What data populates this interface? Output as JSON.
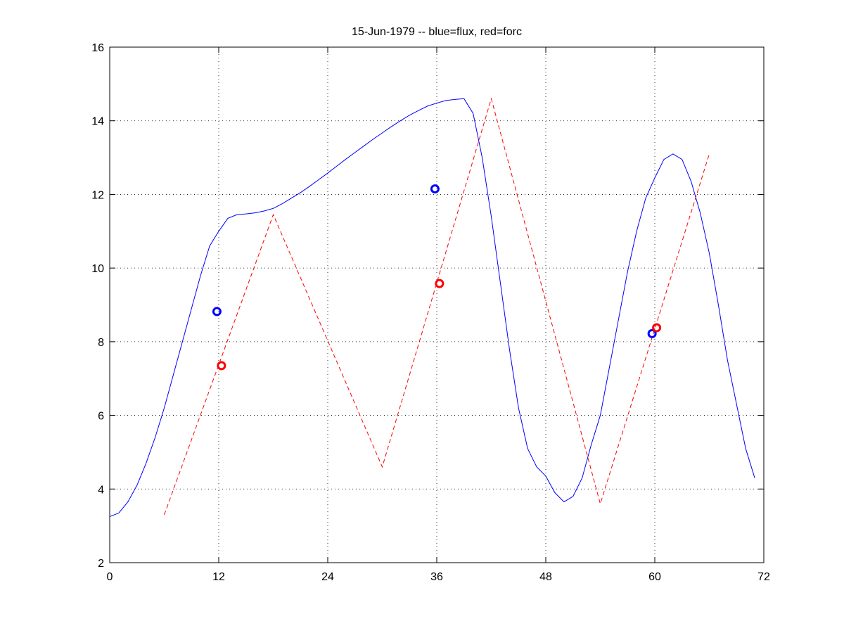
{
  "chart_data": {
    "type": "line",
    "title": "15-Jun-1979 -- blue=flux, red=forc",
    "xlim": [
      0,
      72
    ],
    "xticks": [
      0,
      12,
      24,
      36,
      48,
      60,
      72
    ],
    "ylim": [
      2,
      16
    ],
    "yticks": [
      2,
      4,
      6,
      8,
      10,
      12,
      14,
      16
    ],
    "grid": true,
    "series": [
      {
        "color": "#0000ff",
        "style": "solid",
        "x": [
          0,
          1,
          2,
          3,
          4,
          5,
          6,
          7,
          8,
          9,
          10,
          11,
          12,
          13,
          14,
          15,
          16,
          17,
          18,
          19,
          20,
          21,
          22,
          23,
          24,
          25,
          26,
          27,
          28,
          29,
          30,
          31,
          32,
          33,
          34,
          35,
          36,
          37,
          38,
          39,
          40,
          41,
          42,
          43,
          44,
          45,
          46,
          47,
          48,
          49,
          50,
          51,
          52,
          53,
          54,
          55,
          56,
          57,
          58,
          59,
          60,
          61,
          62,
          63,
          64,
          65,
          66,
          67,
          68,
          69,
          70,
          71
        ],
        "values": [
          3.25,
          3.35,
          3.65,
          4.1,
          4.7,
          5.4,
          6.2,
          7.1,
          8.0,
          8.9,
          9.8,
          10.6,
          11.0,
          11.35,
          11.45,
          11.47,
          11.5,
          11.55,
          11.62,
          11.75,
          11.9,
          12.05,
          12.22,
          12.4,
          12.58,
          12.77,
          12.96,
          13.14,
          13.32,
          13.5,
          13.67,
          13.84,
          14.0,
          14.15,
          14.28,
          14.4,
          14.48,
          14.55,
          14.58,
          14.6,
          14.2,
          13.0,
          11.4,
          9.6,
          7.8,
          6.2,
          5.1,
          4.6,
          4.35,
          3.9,
          3.65,
          3.8,
          4.3,
          5.2,
          6.0,
          7.3,
          8.6,
          9.9,
          11.0,
          11.9,
          12.45,
          12.95,
          13.1,
          12.95,
          12.35,
          11.5,
          10.4,
          9.0,
          7.5,
          6.3,
          5.1,
          4.3
        ]
      },
      {
        "color": "#ff0000",
        "style": "dashed",
        "x": [
          6,
          18,
          30,
          42,
          54,
          66
        ],
        "values": [
          3.3,
          11.45,
          4.6,
          14.6,
          3.6,
          13.1
        ]
      },
      {
        "color": "#0000ff",
        "style": "marker",
        "x": [
          11.8,
          35.8,
          59.7
        ],
        "values": [
          8.82,
          12.15,
          8.22
        ]
      },
      {
        "color": "#ff0000",
        "style": "marker",
        "x": [
          12.3,
          36.3,
          60.2
        ],
        "values": [
          7.35,
          9.58,
          8.38
        ]
      }
    ]
  }
}
